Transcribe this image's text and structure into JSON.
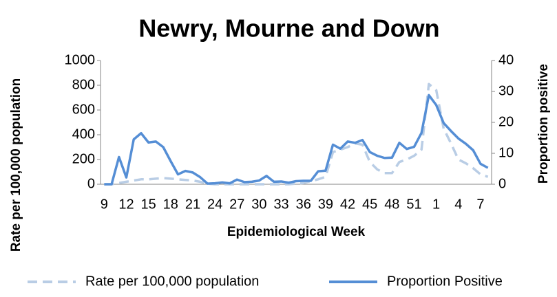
{
  "chart_data": {
    "type": "line",
    "title": "Newry, Mourne and Down",
    "x_label": "Epidemiological Week",
    "y_label": "Rate per 100,000 population",
    "y2_label": "Proportion positive",
    "categories": [
      "9",
      null,
      null,
      "12",
      null,
      null,
      "15",
      null,
      null,
      "18",
      null,
      null,
      "21",
      null,
      null,
      "24",
      null,
      null,
      "27",
      null,
      null,
      "30",
      null,
      null,
      "33",
      null,
      null,
      "36",
      null,
      null,
      "39",
      null,
      null,
      "42",
      null,
      null,
      "45",
      null,
      null,
      "48",
      null,
      null,
      "51",
      null,
      null,
      "1",
      null,
      null,
      "4",
      null,
      null,
      "7",
      null
    ],
    "ylim": [
      0,
      1000
    ],
    "yticks": [
      0,
      200,
      400,
      600,
      800,
      1000
    ],
    "y2lim": [
      0,
      40
    ],
    "y2ticks": [
      0,
      10,
      20,
      30,
      40
    ],
    "legend": "bottom",
    "series": [
      {
        "name": "Rate per 100,000 population",
        "color": "#b9cde5",
        "dashed": true,
        "values": [
          0,
          0,
          10,
          20,
          30,
          40,
          40,
          45,
          50,
          45,
          40,
          35,
          30,
          20,
          5,
          0,
          0,
          0,
          0,
          0,
          0,
          0,
          0,
          0,
          0,
          0,
          5,
          10,
          25,
          40,
          60,
          260,
          280,
          300,
          330,
          320,
          180,
          120,
          90,
          90,
          180,
          200,
          230,
          280,
          810,
          760,
          450,
          330,
          200,
          170,
          130,
          80,
          60
        ]
      },
      {
        "name": "Proportion Positive",
        "color": "#558ed5",
        "axis": "y2",
        "values": [
          0,
          0,
          8.8,
          2.2,
          14.5,
          16.5,
          13.5,
          13.8,
          12,
          7.5,
          3.2,
          4.3,
          3.8,
          2.3,
          0.2,
          0.3,
          0.6,
          0.3,
          1.5,
          0.7,
          0.8,
          1.2,
          2.7,
          0.8,
          0.9,
          0.5,
          1,
          1.1,
          1.1,
          4.2,
          4.4,
          12.8,
          11.5,
          13.8,
          13.4,
          14.3,
          10.4,
          9.2,
          8.5,
          8.6,
          13.4,
          11.4,
          12.1,
          16.6,
          28.8,
          25.6,
          19.8,
          17.2,
          14.8,
          13.1,
          11,
          6.6,
          5.3
        ]
      }
    ]
  }
}
